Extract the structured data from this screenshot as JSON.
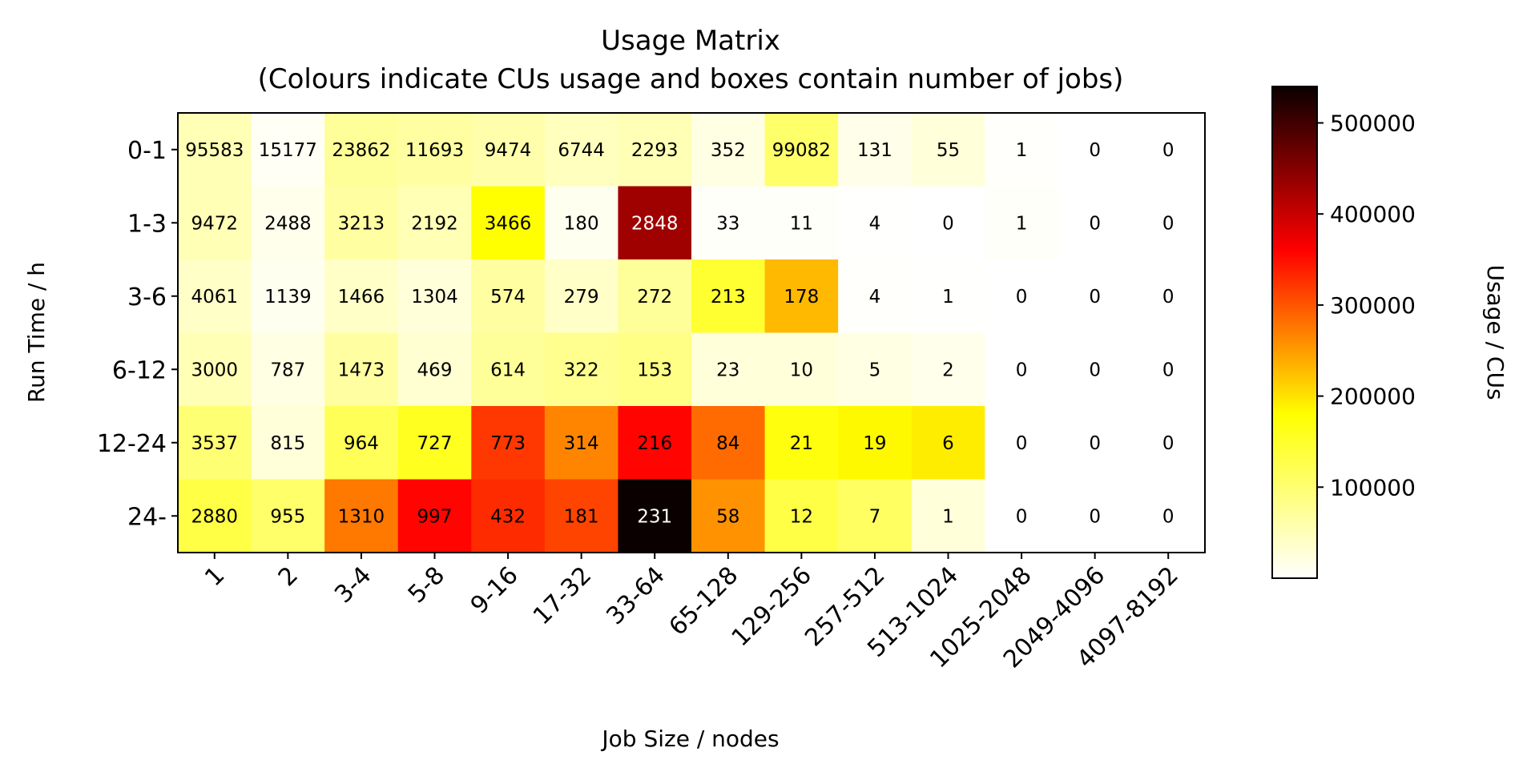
{
  "chart_data": {
    "type": "heatmap",
    "title_line1": "Usage Matrix",
    "title_line2": "(Colours indicate CUs usage and boxes contain number of jobs)",
    "xlabel": "Job Size / nodes",
    "ylabel": "Run Time / h",
    "colorbar_label": "Usage / CUs",
    "colormap": "hot_r",
    "vmin": 0,
    "vmax": 540000,
    "colorbar_ticks": [
      100000,
      200000,
      300000,
      400000,
      500000
    ],
    "colorbar_tick_labels": [
      "100000",
      "200000",
      "300000",
      "400000",
      "500000"
    ],
    "x_categories": [
      "1",
      "2",
      "3-4",
      "5-8",
      "9-16",
      "17-32",
      "33-64",
      "65-128",
      "129-256",
      "257-512",
      "513-1024",
      "1025-2048",
      "2049-4096",
      "4097-8192"
    ],
    "y_categories": [
      "0-1",
      "1-3",
      "3-6",
      "6-12",
      "12-24",
      "24-"
    ],
    "job_counts": [
      [
        "95583",
        "15177",
        "23862",
        "11693",
        "9474",
        "6744",
        "2293",
        "352",
        "99082",
        "131",
        "55",
        "1",
        "0",
        "0"
      ],
      [
        "9472",
        "2488",
        "3213",
        "2192",
        "3466",
        "180",
        "2848",
        "33",
        "11",
        "4",
        "0",
        "1",
        "0",
        "0"
      ],
      [
        "4061",
        "1139",
        "1466",
        "1304",
        "574",
        "279",
        "272",
        "213",
        "178",
        "4",
        "1",
        "0",
        "0",
        "0"
      ],
      [
        "3000",
        "787",
        "1473",
        "469",
        "614",
        "322",
        "153",
        "23",
        "10",
        "5",
        "2",
        "0",
        "0",
        "0"
      ],
      [
        "3537",
        "815",
        "964",
        "727",
        "773",
        "314",
        "216",
        "84",
        "21",
        "19",
        "6",
        "0",
        "0",
        "0"
      ],
      [
        "2880",
        "955",
        "1310",
        "997",
        "432",
        "181",
        "231",
        "58",
        "12",
        "7",
        "1",
        "0",
        "0",
        "0"
      ]
    ],
    "usage_cus": [
      [
        40000,
        5000,
        55000,
        50000,
        45000,
        35000,
        40000,
        15000,
        80000,
        12000,
        20000,
        2000,
        0,
        0
      ],
      [
        40000,
        10000,
        50000,
        40000,
        140000,
        8000,
        420000,
        3000,
        3000,
        1000,
        0,
        3000,
        0,
        0
      ],
      [
        30000,
        8000,
        30000,
        20000,
        50000,
        30000,
        55000,
        110000,
        200000,
        2000,
        1000,
        0,
        0,
        0
      ],
      [
        40000,
        15000,
        50000,
        25000,
        55000,
        60000,
        65000,
        20000,
        20000,
        15000,
        10000,
        0,
        0,
        0
      ],
      [
        75000,
        20000,
        90000,
        120000,
        300000,
        240000,
        340000,
        260000,
        130000,
        150000,
        160000,
        0,
        0,
        0
      ],
      [
        100000,
        80000,
        250000,
        340000,
        310000,
        290000,
        540000,
        230000,
        100000,
        85000,
        20000,
        0,
        0,
        0
      ]
    ]
  }
}
